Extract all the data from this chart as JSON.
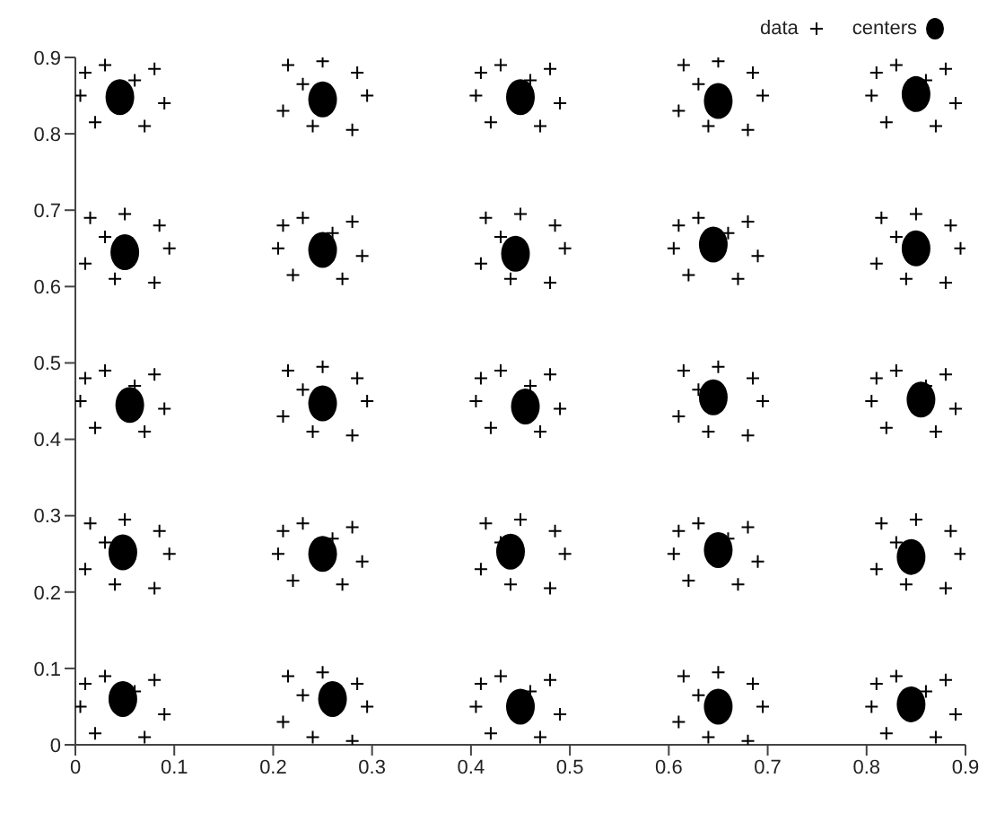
{
  "chart_data": {
    "type": "scatter",
    "xlim": [
      0,
      0.9
    ],
    "ylim": [
      0,
      0.9
    ],
    "xticks": [
      0,
      0.1,
      0.2,
      0.3,
      0.4,
      0.5,
      0.6,
      0.7,
      0.8,
      0.9
    ],
    "yticks": [
      0,
      0.1,
      0.2,
      0.3,
      0.4,
      0.5,
      0.6,
      0.7,
      0.8,
      0.9
    ],
    "grid": false,
    "legend": "top right",
    "series": [
      {
        "name": "data",
        "marker": "cross",
        "color": "#000000",
        "x": [
          0.01,
          0.03,
          0.08,
          0.09,
          0.07,
          0.02,
          0.005,
          0.06,
          0.215,
          0.25,
          0.285,
          0.295,
          0.28,
          0.24,
          0.21,
          0.23,
          0.41,
          0.43,
          0.48,
          0.49,
          0.47,
          0.42,
          0.405,
          0.46,
          0.615,
          0.65,
          0.685,
          0.695,
          0.68,
          0.64,
          0.61,
          0.63,
          0.81,
          0.83,
          0.88,
          0.89,
          0.87,
          0.82,
          0.805,
          0.86,
          0.015,
          0.05,
          0.085,
          0.095,
          0.08,
          0.04,
          0.01,
          0.03,
          0.21,
          0.23,
          0.28,
          0.29,
          0.27,
          0.22,
          0.205,
          0.26,
          0.415,
          0.45,
          0.485,
          0.495,
          0.48,
          0.44,
          0.41,
          0.43,
          0.61,
          0.63,
          0.68,
          0.69,
          0.67,
          0.62,
          0.605,
          0.66,
          0.815,
          0.85,
          0.885,
          0.895,
          0.88,
          0.84,
          0.81,
          0.83,
          0.01,
          0.03,
          0.08,
          0.09,
          0.07,
          0.02,
          0.005,
          0.06,
          0.215,
          0.25,
          0.285,
          0.295,
          0.28,
          0.24,
          0.21,
          0.23,
          0.41,
          0.43,
          0.48,
          0.49,
          0.47,
          0.42,
          0.405,
          0.46,
          0.615,
          0.65,
          0.685,
          0.695,
          0.68,
          0.64,
          0.61,
          0.63,
          0.81,
          0.83,
          0.88,
          0.89,
          0.87,
          0.82,
          0.805,
          0.86,
          0.015,
          0.05,
          0.085,
          0.095,
          0.08,
          0.04,
          0.01,
          0.03,
          0.21,
          0.23,
          0.28,
          0.29,
          0.27,
          0.22,
          0.205,
          0.26,
          0.415,
          0.45,
          0.485,
          0.495,
          0.48,
          0.44,
          0.41,
          0.43,
          0.61,
          0.63,
          0.68,
          0.69,
          0.67,
          0.62,
          0.605,
          0.66,
          0.815,
          0.85,
          0.885,
          0.895,
          0.88,
          0.84,
          0.81,
          0.83,
          0.01,
          0.03,
          0.08,
          0.09,
          0.07,
          0.02,
          0.005,
          0.06,
          0.215,
          0.25,
          0.285,
          0.295,
          0.28,
          0.24,
          0.21,
          0.23,
          0.41,
          0.43,
          0.48,
          0.49,
          0.47,
          0.42,
          0.405,
          0.46,
          0.615,
          0.65,
          0.685,
          0.695,
          0.68,
          0.64,
          0.61,
          0.63,
          0.81,
          0.83,
          0.88,
          0.89,
          0.87,
          0.82,
          0.805,
          0.86
        ],
        "values": [
          0.08,
          0.09,
          0.085,
          0.04,
          0.01,
          0.015,
          0.05,
          0.07,
          0.09,
          0.095,
          0.08,
          0.05,
          0.005,
          0.01,
          0.03,
          0.065,
          0.08,
          0.09,
          0.085,
          0.04,
          0.01,
          0.015,
          0.05,
          0.07,
          0.09,
          0.095,
          0.08,
          0.05,
          0.005,
          0.01,
          0.03,
          0.065,
          0.08,
          0.09,
          0.085,
          0.04,
          0.01,
          0.015,
          0.05,
          0.07,
          0.29,
          0.295,
          0.28,
          0.25,
          0.205,
          0.21,
          0.23,
          0.265,
          0.28,
          0.29,
          0.285,
          0.24,
          0.21,
          0.215,
          0.25,
          0.27,
          0.29,
          0.295,
          0.28,
          0.25,
          0.205,
          0.21,
          0.23,
          0.265,
          0.28,
          0.29,
          0.285,
          0.24,
          0.21,
          0.215,
          0.25,
          0.27,
          0.29,
          0.295,
          0.28,
          0.25,
          0.205,
          0.21,
          0.23,
          0.265,
          0.48,
          0.49,
          0.485,
          0.44,
          0.41,
          0.415,
          0.45,
          0.47,
          0.49,
          0.495,
          0.48,
          0.45,
          0.405,
          0.41,
          0.43,
          0.465,
          0.48,
          0.49,
          0.485,
          0.44,
          0.41,
          0.415,
          0.45,
          0.47,
          0.49,
          0.495,
          0.48,
          0.45,
          0.405,
          0.41,
          0.43,
          0.465,
          0.48,
          0.49,
          0.485,
          0.44,
          0.41,
          0.415,
          0.45,
          0.47,
          0.69,
          0.695,
          0.68,
          0.65,
          0.605,
          0.61,
          0.63,
          0.665,
          0.68,
          0.69,
          0.685,
          0.64,
          0.61,
          0.615,
          0.65,
          0.67,
          0.69,
          0.695,
          0.68,
          0.65,
          0.605,
          0.61,
          0.63,
          0.665,
          0.68,
          0.69,
          0.685,
          0.64,
          0.61,
          0.615,
          0.65,
          0.67,
          0.69,
          0.695,
          0.68,
          0.65,
          0.605,
          0.61,
          0.63,
          0.665,
          0.88,
          0.89,
          0.885,
          0.84,
          0.81,
          0.815,
          0.85,
          0.87,
          0.89,
          0.895,
          0.88,
          0.85,
          0.805,
          0.81,
          0.83,
          0.865,
          0.88,
          0.89,
          0.885,
          0.84,
          0.81,
          0.815,
          0.85,
          0.87,
          0.89,
          0.895,
          0.88,
          0.85,
          0.805,
          0.81,
          0.83,
          0.865,
          0.88,
          0.89,
          0.885,
          0.84,
          0.81,
          0.815,
          0.85,
          0.87
        ]
      },
      {
        "name": "centers",
        "marker": "circle",
        "color": "#000000",
        "x": [
          0.048,
          0.26,
          0.45,
          0.65,
          0.845,
          0.048,
          0.25,
          0.44,
          0.65,
          0.845,
          0.055,
          0.25,
          0.455,
          0.645,
          0.855,
          0.05,
          0.25,
          0.445,
          0.645,
          0.85,
          0.045,
          0.25,
          0.45,
          0.65,
          0.85
        ],
        "values": [
          0.06,
          0.06,
          0.05,
          0.05,
          0.053,
          0.252,
          0.25,
          0.253,
          0.255,
          0.246,
          0.445,
          0.447,
          0.443,
          0.455,
          0.452,
          0.645,
          0.648,
          0.643,
          0.655,
          0.65,
          0.848,
          0.845,
          0.848,
          0.843,
          0.852
        ]
      }
    ]
  }
}
